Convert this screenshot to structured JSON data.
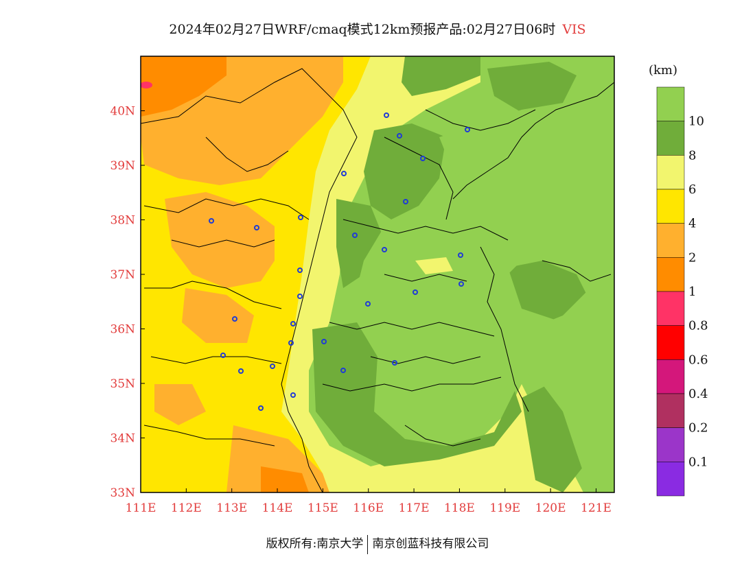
{
  "title": {
    "main": "2024年02月27日WRF/cmaq模式12km预报产品:02月27日06时",
    "variable": "VIS"
  },
  "map": {
    "region": "North China",
    "lon_range": [
      111,
      121.4
    ],
    "lat_range": [
      33,
      41
    ],
    "x_ticks": [
      "111E",
      "112E",
      "113E",
      "114E",
      "115E",
      "116E",
      "117E",
      "118E",
      "119E",
      "120E",
      "121E"
    ],
    "y_ticks": [
      "33N",
      "34N",
      "35N",
      "36N",
      "37N",
      "38N",
      "39N",
      "40N"
    ]
  },
  "colorbar": {
    "unit": "(km)",
    "bins": [
      {
        "color": "#92d050",
        "label": ""
      },
      {
        "color": "#70ad3a",
        "label": "10"
      },
      {
        "color": "#f2f56e",
        "label": "8"
      },
      {
        "color": "#ffe600",
        "label": "6"
      },
      {
        "color": "#ffb02e",
        "label": "4"
      },
      {
        "color": "#ff8c00",
        "label": "2"
      },
      {
        "color": "#ff3366",
        "label": "1"
      },
      {
        "color": "#ff0000",
        "label": "0.8"
      },
      {
        "color": "#d4177b",
        "label": "0.6"
      },
      {
        "color": "#b03060",
        "label": "0.4"
      },
      {
        "color": "#9b35c9",
        "label": "0.2"
      },
      {
        "color": "#8a2be2",
        "label": "0.1"
      }
    ]
  },
  "footer": {
    "left": "版权所有:南京大学",
    "right": "南京创蓝科技有限公司"
  }
}
